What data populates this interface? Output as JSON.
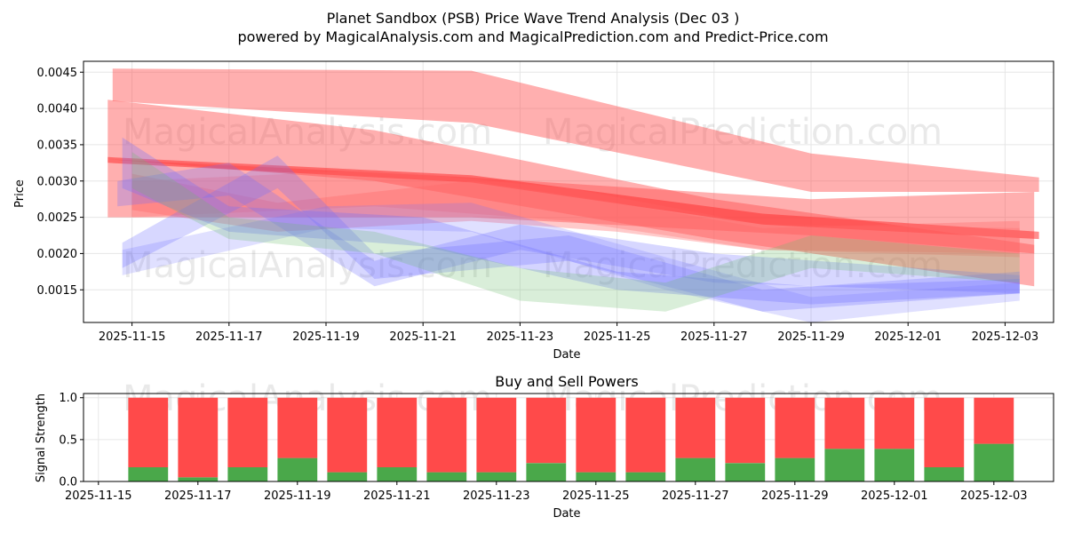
{
  "chart_data": [
    {
      "type": "area",
      "title": "Planet Sandbox (PSB) Price Wave Trend Analysis (Dec 03 )",
      "subtitle": "powered by MagicalAnalysis.com and MagicalPrediction.com and Predict-Price.com",
      "xlabel": "Date",
      "ylabel": "Price",
      "xlim": [
        "2025-11-14",
        "2025-12-04"
      ],
      "ylim": [
        0.00105,
        0.00465
      ],
      "x_ticks": [
        "2025-11-15",
        "2025-11-17",
        "2025-11-19",
        "2025-11-21",
        "2025-11-23",
        "2025-11-25",
        "2025-11-27",
        "2025-11-29",
        "2025-12-01",
        "2025-12-03"
      ],
      "y_ticks": [
        "0.0015",
        "0.0020",
        "0.0025",
        "0.0030",
        "0.0035",
        "0.0040",
        "0.0045"
      ],
      "grid": true,
      "watermarks": [
        "MagicalAnalysis.com",
        "MagicalPrediction.com"
      ],
      "bands": [
        {
          "color": "#ff4d4d",
          "opacity": 0.45,
          "points": [
            [
              "2025-11-14.6",
              0.00455,
              0.0041
            ],
            [
              "2025-11-22",
              0.00452,
              0.0038
            ],
            [
              "2025-11-29",
              0.00338,
              0.00285
            ],
            [
              "2025-12-03.7",
              0.00305,
              0.00285
            ]
          ]
        },
        {
          "color": "#ff4d4d",
          "opacity": 0.45,
          "points": [
            [
              "2025-11-14.5",
              0.00412,
              0.0033
            ],
            [
              "2025-11-20",
              0.0037,
              0.003
            ],
            [
              "2025-11-27",
              0.00275,
              0.0022
            ],
            [
              "2025-12-03.6",
              0.00212,
              0.00155
            ]
          ]
        },
        {
          "color": "#ff4d4d",
          "opacity": 0.45,
          "points": [
            [
              "2025-11-14.5",
              0.0033,
              0.0025
            ],
            [
              "2025-11-22",
              0.00305,
              0.0025
            ],
            [
              "2025-11-29",
              0.00275,
              0.00225
            ],
            [
              "2025-12-03.6",
              0.00285,
              0.002
            ]
          ]
        },
        {
          "color": "#ff3333",
          "opacity": 0.55,
          "points": [
            [
              "2025-11-14.5",
              0.00333,
              0.00325
            ],
            [
              "2025-11-22",
              0.00308,
              0.00298
            ],
            [
              "2025-11-28",
              0.00255,
              0.0024
            ],
            [
              "2025-12-03.7",
              0.0023,
              0.0022
            ]
          ]
        },
        {
          "color": "#ff6666",
          "opacity": 0.35,
          "points": [
            [
              "2025-11-15",
              0.0031,
              0.0026
            ],
            [
              "2025-11-18",
              0.0027,
              0.0023
            ],
            [
              "2025-11-22",
              0.003,
              0.00245
            ],
            [
              "2025-11-25",
              0.0027,
              0.0023
            ],
            [
              "2025-11-28",
              0.00235,
              0.00205
            ],
            [
              "2025-12-03.3",
              0.00245,
              0.002
            ]
          ]
        },
        {
          "color": "#ff6666",
          "opacity": 0.3,
          "points": [
            [
              "2025-11-15",
              0.003,
              0.0025
            ],
            [
              "2025-11-20",
              0.00315,
              0.00265
            ],
            [
              "2025-11-24",
              0.0029,
              0.00245
            ],
            [
              "2025-11-28",
              0.0024,
              0.00205
            ],
            [
              "2025-12-03.3",
              0.00235,
              0.00195
            ]
          ]
        },
        {
          "color": "#7070ff",
          "opacity": 0.3,
          "points": [
            [
              "2025-11-14.8",
              0.0036,
              0.0029
            ],
            [
              "2025-11-17",
              0.00265,
              0.0023
            ],
            [
              "2025-11-21",
              0.0025,
              0.0021
            ],
            [
              "2025-11-25",
              0.00175,
              0.0015
            ],
            [
              "2025-11-29",
              0.00155,
              0.0013
            ],
            [
              "2025-12-03.3",
              0.00165,
              0.00145
            ]
          ]
        },
        {
          "color": "#7070ff",
          "opacity": 0.28,
          "points": [
            [
              "2025-11-14.8",
              0.00215,
              0.0018
            ],
            [
              "2025-11-18",
              0.00335,
              0.0029
            ],
            [
              "2025-11-20",
              0.002,
              0.00165
            ],
            [
              "2025-11-24",
              0.00225,
              0.0019
            ],
            [
              "2025-11-28",
              0.0015,
              0.0012
            ],
            [
              "2025-12-03.3",
              0.00175,
              0.00145
            ]
          ]
        },
        {
          "color": "#7070ff",
          "opacity": 0.28,
          "points": [
            [
              "2025-11-14.7",
              0.003,
              0.00265
            ],
            [
              "2025-11-17",
              0.00325,
              0.0028
            ],
            [
              "2025-11-20",
              0.0019,
              0.00155
            ],
            [
              "2025-11-23",
              0.0024,
              0.00205
            ],
            [
              "2025-11-27",
              0.002,
              0.0016
            ],
            [
              "2025-12-03.3",
              0.0017,
              0.00145
            ]
          ]
        },
        {
          "color": "#7070ff",
          "opacity": 0.22,
          "points": [
            [
              "2025-11-14.8",
              0.00205,
              0.0017
            ],
            [
              "2025-11-19",
              0.00265,
              0.00235
            ],
            [
              "2025-11-22",
              0.0027,
              0.0023
            ],
            [
              "2025-11-26",
              0.00195,
              0.0015
            ],
            [
              "2025-11-29",
              0.0014,
              0.00105
            ],
            [
              "2025-12-03.3",
              0.0016,
              0.00135
            ]
          ]
        },
        {
          "color": "#66bb66",
          "opacity": 0.25,
          "points": [
            [
              "2025-11-15",
              0.0034,
              0.0029
            ],
            [
              "2025-11-17",
              0.0025,
              0.0022
            ],
            [
              "2025-11-20",
              0.0023,
              0.002
            ],
            [
              "2025-11-23",
              0.0018,
              0.00135
            ],
            [
              "2025-11-26",
              0.0016,
              0.0012
            ],
            [
              "2025-11-29",
              0.00225,
              0.0018
            ],
            [
              "2025-12-03.3",
              0.002,
              0.0016
            ]
          ]
        }
      ]
    },
    {
      "type": "bar",
      "title": "Buy and Sell Powers",
      "xlabel": "Date",
      "ylabel": "Signal Strength",
      "xlim": [
        "2025-11-14.7",
        "2025-12-04.2"
      ],
      "ylim": [
        0,
        1.05
      ],
      "x_ticks": [
        "2025-11-15",
        "2025-11-17",
        "2025-11-19",
        "2025-11-21",
        "2025-11-23",
        "2025-11-25",
        "2025-11-27",
        "2025-11-29",
        "2025-12-01",
        "2025-12-03"
      ],
      "y_ticks": [
        "0.0",
        "0.5",
        "1.0"
      ],
      "grid": true,
      "categories": [
        "2025-11-16",
        "2025-11-17",
        "2025-11-18",
        "2025-11-19",
        "2025-11-20",
        "2025-11-21",
        "2025-11-22",
        "2025-11-23",
        "2025-11-24",
        "2025-11-25",
        "2025-11-26",
        "2025-11-27",
        "2025-11-28",
        "2025-11-29",
        "2025-11-30",
        "2025-12-01",
        "2025-12-02",
        "2025-12-03"
      ],
      "series": [
        {
          "name": "Buy",
          "color": "#4aa84a",
          "values": [
            0.17,
            0.05,
            0.17,
            0.28,
            0.11,
            0.17,
            0.11,
            0.11,
            0.22,
            0.11,
            0.11,
            0.28,
            0.22,
            0.28,
            0.39,
            0.39,
            0.17,
            0.45
          ]
        },
        {
          "name": "Sell",
          "color": "#ff4a4a",
          "values": [
            0.83,
            0.95,
            0.83,
            0.72,
            0.89,
            0.83,
            0.89,
            0.89,
            0.78,
            0.89,
            0.89,
            0.72,
            0.78,
            0.72,
            0.61,
            0.61,
            0.83,
            0.55
          ]
        }
      ],
      "watermarks": [
        "MagicalAnalysis.com",
        "MagicalPrediction.com"
      ]
    }
  ]
}
